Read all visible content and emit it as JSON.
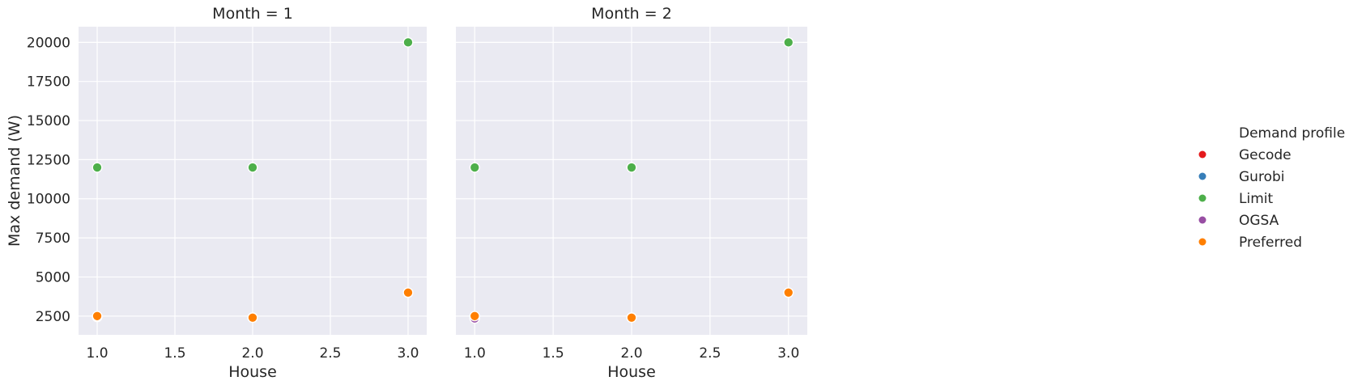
{
  "chart_data": {
    "type": "scatter",
    "ylabel": "Max demand (W)",
    "ylim": [
      1300,
      21000
    ],
    "yticks": [
      2500,
      5000,
      7500,
      10000,
      12500,
      15000,
      17500,
      20000
    ],
    "xlim": [
      0.88,
      3.12
    ],
    "xticks": [
      1.0,
      1.5,
      2.0,
      2.5,
      3.0
    ],
    "grid": true,
    "legend": {
      "title": "Demand profile",
      "placement": "right",
      "entries": [
        {
          "name": "Gecode",
          "color": "#e41a1c"
        },
        {
          "name": "Gurobi",
          "color": "#377eb8"
        },
        {
          "name": "Limit",
          "color": "#4daf4a"
        },
        {
          "name": "OGSA",
          "color": "#984ea3"
        },
        {
          "name": "Preferred",
          "color": "#ff7f00"
        }
      ]
    },
    "facets": [
      {
        "title": "Month = 1",
        "xlabel": "House",
        "series": [
          {
            "name": "Gecode",
            "x": [
              1,
              2,
              3
            ],
            "y": [
              2450,
              2400,
              4000
            ]
          },
          {
            "name": "Gurobi",
            "x": [
              1,
              2,
              3
            ],
            "y": [
              2450,
              2400,
              4000
            ]
          },
          {
            "name": "OGSA",
            "x": [
              1,
              2,
              3
            ],
            "y": [
              2450,
              2400,
              4000
            ]
          },
          {
            "name": "Limit",
            "x": [
              1,
              2,
              3
            ],
            "y": [
              12000,
              12000,
              20000
            ]
          },
          {
            "name": "Preferred",
            "x": [
              1,
              2,
              3
            ],
            "y": [
              2500,
              2400,
              4000
            ]
          }
        ]
      },
      {
        "title": "Month = 2",
        "xlabel": "House",
        "series": [
          {
            "name": "Gecode",
            "x": [
              1,
              2,
              3
            ],
            "y": [
              2350,
              2400,
              4000
            ]
          },
          {
            "name": "Gurobi",
            "x": [
              1,
              2,
              3
            ],
            "y": [
              2350,
              2400,
              4000
            ]
          },
          {
            "name": "OGSA",
            "x": [
              1,
              2,
              3
            ],
            "y": [
              2350,
              2400,
              4000
            ]
          },
          {
            "name": "Limit",
            "x": [
              1,
              2,
              3
            ],
            "y": [
              12000,
              12000,
              20000
            ]
          },
          {
            "name": "Preferred",
            "x": [
              1,
              2,
              3
            ],
            "y": [
              2500,
              2400,
              4000
            ]
          }
        ]
      }
    ]
  }
}
